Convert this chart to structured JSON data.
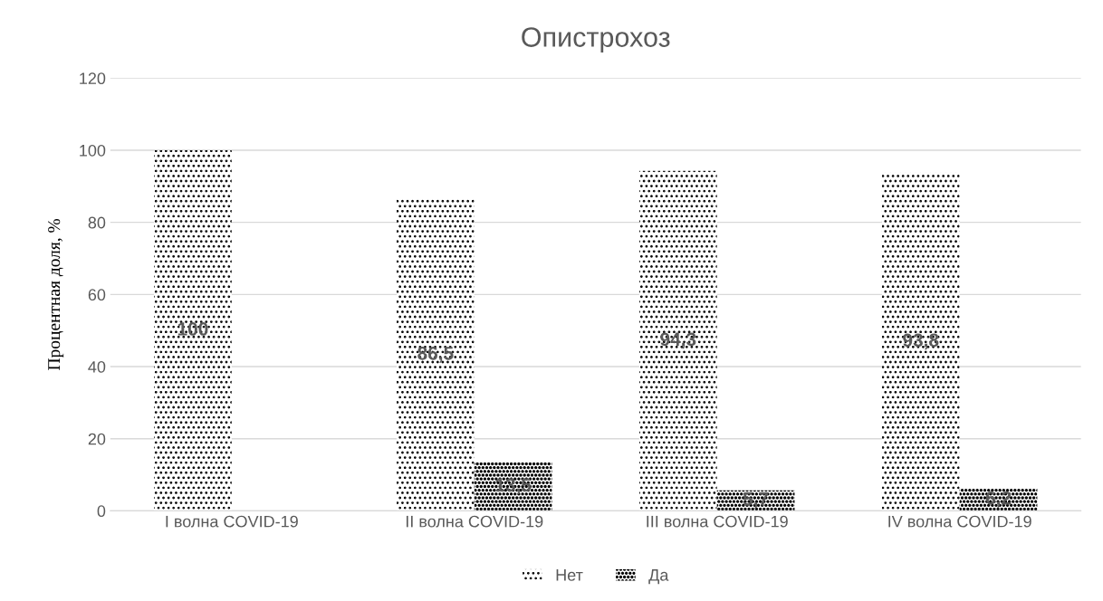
{
  "chart_data": {
    "type": "bar",
    "title": "Опистрохоз",
    "ylabel": "Процентная доля, %",
    "categories": [
      "I волна COVID-19",
      "II волна COVID-19",
      "III волна COVID-19",
      "IV волна COVID-19"
    ],
    "series": [
      {
        "name": "Нет",
        "color": "#000000",
        "values": [
          100,
          86.5,
          94.3,
          93.8
        ],
        "value_labels": [
          "100",
          "86,5",
          "94,3",
          "93,8"
        ]
      },
      {
        "name": "Да",
        "color": "#000000",
        "values": [
          null,
          13.5,
          5.7,
          6.2
        ],
        "value_labels": [
          null,
          "13,5",
          "5,7",
          "6,2"
        ]
      }
    ],
    "ylim": [
      0,
      120
    ],
    "yticks": [
      0,
      20,
      40,
      60,
      80,
      100,
      120
    ],
    "grid": "y",
    "legend": "bottom"
  }
}
